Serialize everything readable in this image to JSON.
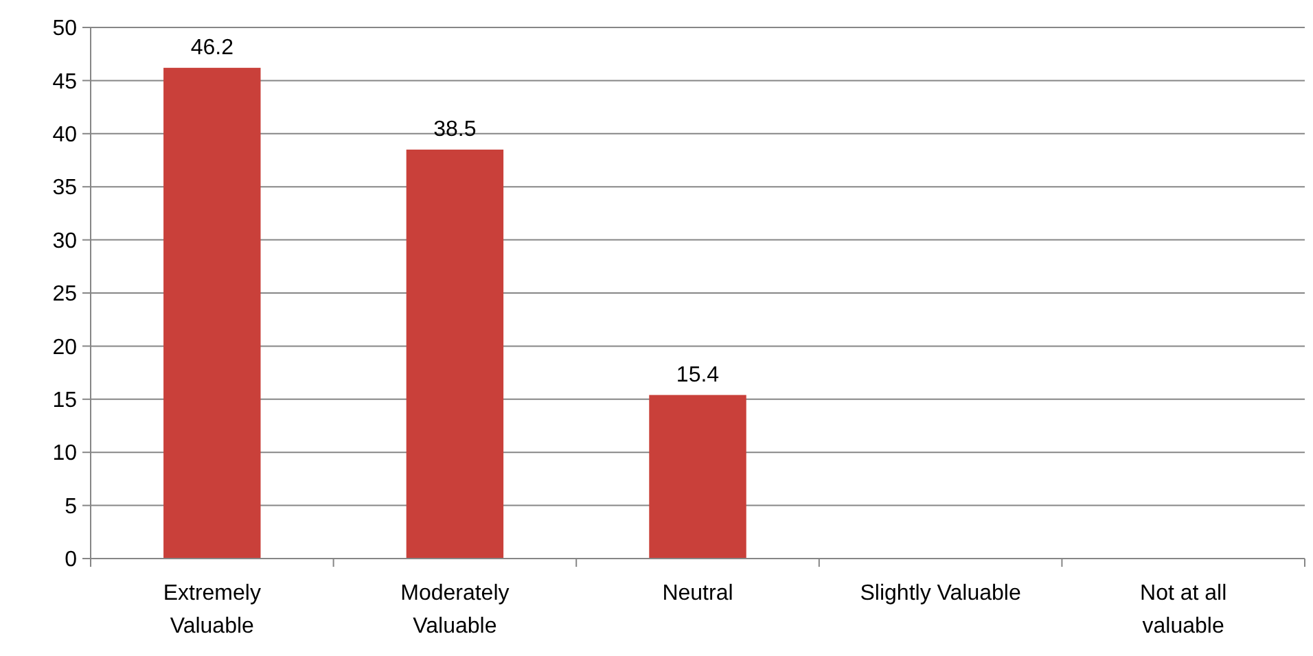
{
  "chart_data": {
    "type": "bar",
    "categories": [
      "Extremely Valuable",
      "Moderately Valuable",
      "Neutral",
      "Slightly Valuable",
      "Not at all valuable"
    ],
    "values": [
      46.2,
      38.5,
      15.4,
      0,
      0
    ],
    "value_labels": [
      "46.2",
      "38.5",
      "15.4",
      null,
      null
    ],
    "color": "#c9403a",
    "ylim": [
      0,
      50
    ],
    "yticks": [
      0,
      5,
      10,
      15,
      20,
      25,
      30,
      35,
      40,
      45,
      50
    ],
    "grid": "y"
  }
}
